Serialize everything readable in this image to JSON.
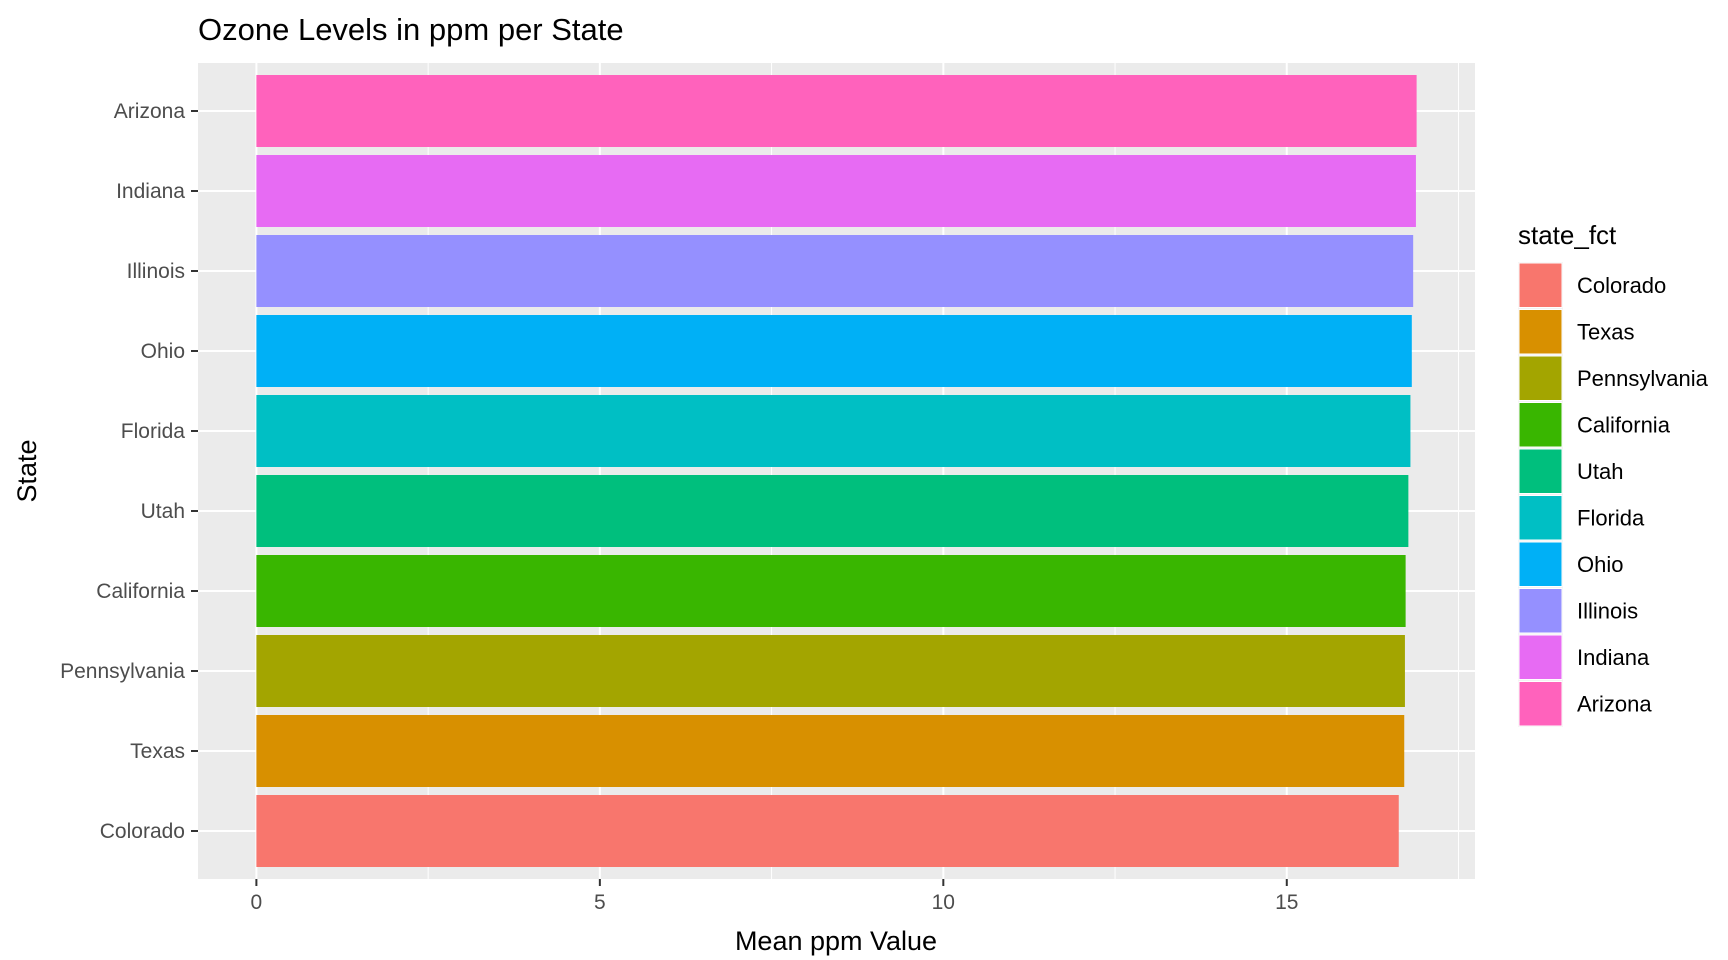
{
  "chart_data": {
    "type": "bar",
    "orientation": "horizontal",
    "title": "Ozone Levels in ppm per State",
    "xlabel": "Mean ppm Value",
    "ylabel": "State",
    "categories": [
      "Colorado",
      "Texas",
      "Pennsylvania",
      "California",
      "Utah",
      "Florida",
      "Ohio",
      "Illinois",
      "Indiana",
      "Arizona"
    ],
    "values": [
      16.63,
      16.71,
      16.72,
      16.73,
      16.77,
      16.8,
      16.82,
      16.84,
      16.88,
      16.89
    ],
    "colors": [
      "#F8766D",
      "#D89000",
      "#A3A500",
      "#39B600",
      "#00BF7D",
      "#00BFC4",
      "#00B0F6",
      "#9590FF",
      "#E76BF3",
      "#FF62BC"
    ],
    "xlim": [
      -0.85,
      17.74
    ],
    "xticks": [
      0,
      5,
      10,
      15
    ],
    "grid": true,
    "legend": {
      "title": "state_fct",
      "position": "right",
      "items": [
        "Colorado",
        "Texas",
        "Pennsylvania",
        "California",
        "Utah",
        "Florida",
        "Ohio",
        "Illinois",
        "Indiana",
        "Arizona"
      ]
    }
  }
}
